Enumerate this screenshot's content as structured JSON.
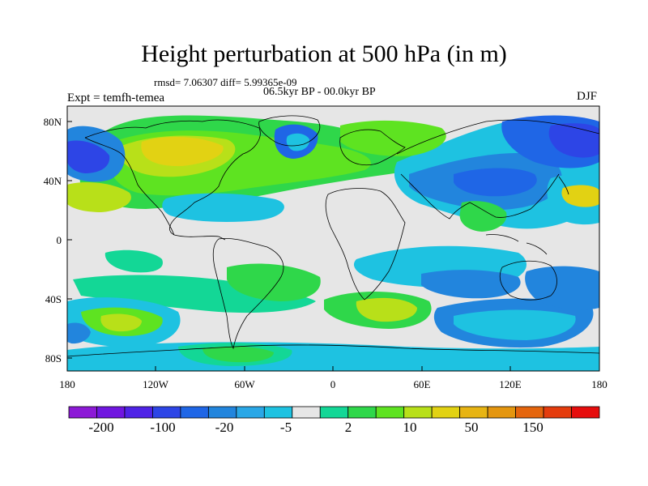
{
  "title": "Height perturbation at 500 hPa (in m)",
  "stats": "rmsd= 7.06307  diff= 5.99365e-09",
  "period": "06.5kyr BP - 00.0kyr BP",
  "experiment": "Expt = temfh-temea",
  "season": "DJF",
  "axes": {
    "x_ticks": [
      "180",
      "120W",
      "60W",
      "0",
      "60E",
      "120E",
      "180"
    ],
    "y_ticks": [
      "80N",
      "40N",
      "0",
      "40S",
      "80S"
    ]
  },
  "colorbar": {
    "labels": [
      "-200",
      "-100",
      "-20",
      "-5",
      "2",
      "10",
      "50",
      "150"
    ],
    "colors": [
      "#8c19d6",
      "#7016e0",
      "#4f23e6",
      "#2d45e6",
      "#1f66e6",
      "#2285dd",
      "#2aa7e6",
      "#1ec2e1",
      "#e6e6e6",
      "#13d796",
      "#2fd74a",
      "#5ee321",
      "#b8e019",
      "#e2d213",
      "#e7b413",
      "#e4960f",
      "#e4650d",
      "#e43c0d",
      "#e60d0d"
    ]
  },
  "colors": {
    "background": "#e6e6e6",
    "coastline": "#000000"
  }
}
